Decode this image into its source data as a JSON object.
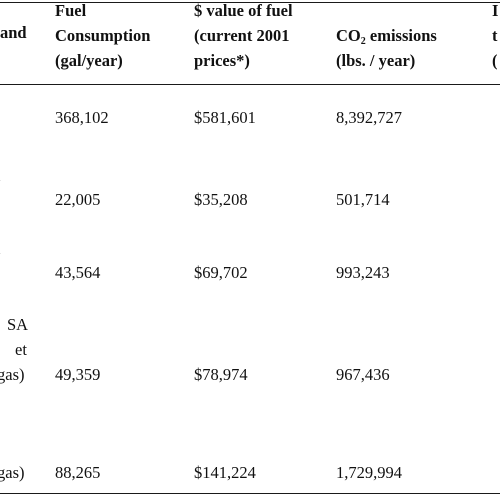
{
  "header": {
    "col0_clipped": "and",
    "fuel_line1": "Fuel",
    "fuel_line2": "Consumption",
    "fuel_line3": "(gal/year)",
    "value_line1": "$ value of fuel",
    "value_line2": "(current 2001",
    "value_line3": "prices*)",
    "co2_prefix": "CO",
    "co2_sub": "2",
    "co2_suffix": " emissions",
    "co2_line2": "(lbs. / year)",
    "edge_line1": "I",
    "edge_line2": "t",
    "edge_line3": "("
  },
  "rows": [
    {
      "label_clip": [],
      "fuel": "368,102",
      "value": "$581,601",
      "co2": "8,392,727"
    },
    {
      "label_clip": [
        "l"
      ],
      "fuel": "22,005",
      "value": "$35,208",
      "co2": "501,714"
    },
    {
      "label_clip": [
        "l"
      ],
      "fuel": "43,564",
      "value": "$69,702",
      "co2": "993,243"
    },
    {
      "label_clip": [
        "SA",
        "et",
        "gas)"
      ],
      "fuel": "49,359",
      "value": "$78,974",
      "co2": "967,436"
    },
    {
      "label_clip": [
        "gas)"
      ],
      "fuel": "88,265",
      "value": "$141,224",
      "co2": "1,729,994"
    }
  ]
}
